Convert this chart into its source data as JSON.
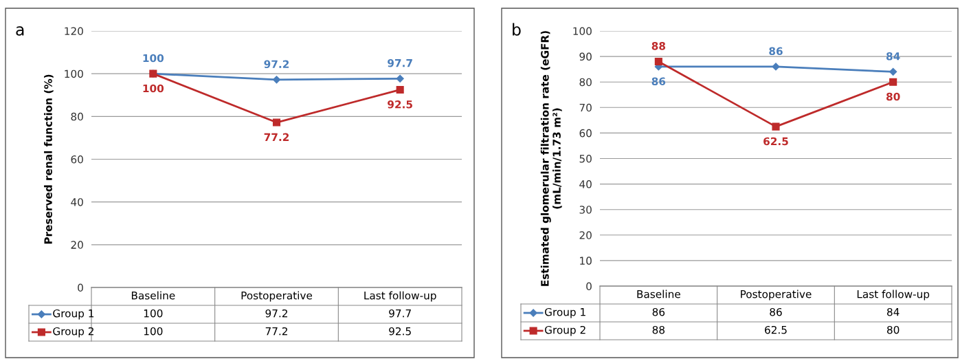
{
  "chart_data": [
    {
      "type": "line",
      "title": "a",
      "ylabel": "Preserved renal function (%)",
      "categories": [
        "Baseline",
        "Postoperative",
        "Last follow-up"
      ],
      "ylim": [
        0,
        120
      ],
      "yticks": [
        0,
        20,
        40,
        60,
        80,
        100,
        120
      ],
      "grid": "y",
      "data_labels": true,
      "legend": "bottom",
      "annotations": [
        "100",
        "97.2",
        "97.7",
        "100",
        "77.2",
        "92.5"
      ],
      "series": [
        {
          "name": "Group 1",
          "color": "#4a7ebb",
          "marker": "diamond",
          "values": [
            100,
            97.2,
            97.7
          ],
          "value_labels": [
            "100",
            "97.2",
            "97.7"
          ]
        },
        {
          "name": "Group 2",
          "color": "#be2a2a",
          "marker": "square",
          "values": [
            100,
            77.2,
            92.5
          ],
          "value_labels": [
            "100",
            "77.2",
            "92.5"
          ]
        }
      ]
    },
    {
      "type": "line",
      "title": "b",
      "ylabel": "Estimated glomerular filtration rate (eGFR)\n(mL/min/1.73 m²)",
      "categories": [
        "Baseline",
        "Postoperative",
        "Last follow-up"
      ],
      "ylim": [
        0,
        100
      ],
      "yticks": [
        0,
        10,
        20,
        30,
        40,
        50,
        60,
        70,
        80,
        90,
        100
      ],
      "grid": "y",
      "data_labels": true,
      "legend": "bottom",
      "annotations": [
        "86",
        "86",
        "84",
        "88",
        "62.5",
        "80"
      ],
      "series": [
        {
          "name": "Group 1",
          "color": "#4a7ebb",
          "marker": "diamond",
          "values": [
            86,
            86,
            84
          ],
          "value_labels": [
            "86",
            "86",
            "84"
          ]
        },
        {
          "name": "Group 2",
          "color": "#be2a2a",
          "marker": "square",
          "values": [
            88,
            62.5,
            80
          ],
          "value_labels": [
            "88",
            "62.5",
            "80"
          ]
        }
      ]
    }
  ]
}
